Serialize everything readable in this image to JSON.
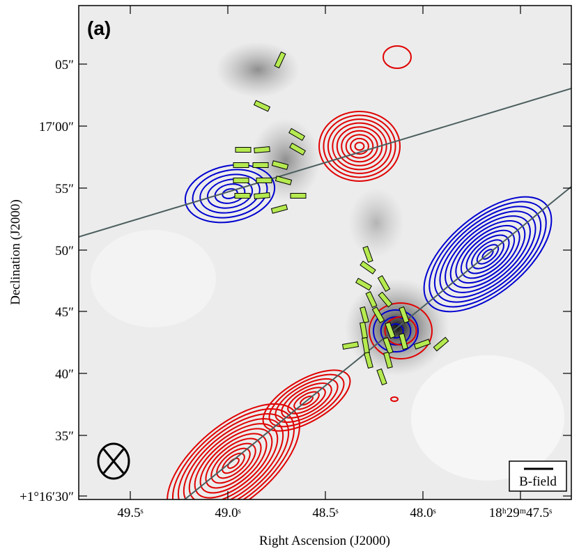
{
  "panel_label": "(a)",
  "axes": {
    "x_label": "Right Ascension (J2000)",
    "y_label": "Declination (J2000)"
  },
  "x_ticks": [
    "49.5ˢ",
    "49.0ˢ",
    "48.5ˢ",
    "48.0ˢ",
    "18ʰ29ᵐ47.5ˢ"
  ],
  "y_ticks": [
    "05″",
    "17′00″",
    "55″",
    "50″",
    "45″",
    "40″",
    "35″",
    "+1°16′30″"
  ],
  "legend": {
    "label": "B-field"
  }
}
